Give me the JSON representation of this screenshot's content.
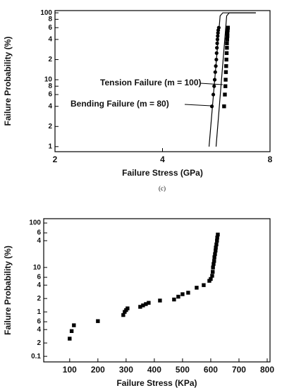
{
  "chart_data": [
    {
      "type": "scatter",
      "ylabel": "Failure Probability (%)",
      "xlabel": "Failure Stress (GPa)",
      "caption": "(c)",
      "xscale": "log",
      "yscale": "log",
      "xlim": [
        2,
        8
      ],
      "ylim": [
        0.84,
        108
      ],
      "xticks": [
        2,
        4,
        8
      ],
      "yticks": [
        1,
        2,
        4,
        6,
        8,
        10,
        {
          "value": 20,
          "label": "2"
        },
        {
          "value": 40,
          "label": "4"
        },
        {
          "value": 60,
          "label": "6"
        },
        {
          "value": 80,
          "label": "8"
        },
        100
      ],
      "annotations": [
        "Tension Failure (m = 100)",
        "Bending Failure (m = 80)"
      ],
      "series": [
        {
          "marker": "circle",
          "color": "#000000",
          "x": [
            5.5,
            5.55,
            5.58,
            5.6,
            5.62,
            5.64,
            5.66,
            5.67,
            5.68,
            5.69,
            5.7,
            5.71,
            5.72,
            5.73,
            5.75
          ],
          "values": [
            4,
            6,
            8,
            10,
            13,
            16,
            20,
            25,
            30,
            35,
            40,
            45,
            50,
            55,
            60
          ]
        },
        {
          "marker": "square",
          "color": "#000000",
          "x": [
            5.95,
            5.98,
            6.0,
            6.01,
            6.02,
            6.03,
            6.04,
            6.05,
            6.06,
            6.06,
            6.07,
            6.08,
            6.08,
            6.09,
            6.1
          ],
          "values": [
            4,
            6,
            8,
            10,
            13,
            16,
            20,
            25,
            30,
            35,
            40,
            45,
            50,
            55,
            60
          ]
        },
        {
          "marker": "none",
          "color": "#000000",
          "x": [
            5.4,
            5.8,
            5.9,
            7.3
          ],
          "values": [
            1,
            90,
            100,
            100
          ]
        },
        {
          "marker": "none",
          "color": "#000000",
          "x": [
            5.65,
            6.05,
            6.15,
            7.3
          ],
          "values": [
            1,
            90,
            100,
            100
          ]
        }
      ]
    },
    {
      "type": "scatter",
      "ylabel": "Failure Probability (%)",
      "xlabel": "Failure Stress (KPa)",
      "xscale": "linear",
      "yscale": "log",
      "xlim": [
        8,
        810
      ],
      "ylim": [
        0.075,
        125
      ],
      "xticks": [
        100,
        200,
        300,
        400,
        500,
        600,
        700,
        800
      ],
      "yticks": [
        0.1,
        {
          "value": 0.2,
          "label": "2"
        },
        {
          "value": 0.4,
          "label": "4"
        },
        {
          "value": 0.6,
          "label": "6"
        },
        1,
        {
          "value": 2,
          "label": "2"
        },
        {
          "value": 4,
          "label": "4"
        },
        {
          "value": 6,
          "label": "6"
        },
        10,
        {
          "value": 40,
          "label": "4"
        },
        {
          "value": 60,
          "label": "6"
        },
        100
      ],
      "series": [
        {
          "marker": "square",
          "color": "#000000",
          "x": [
            100,
            107,
            115,
            200,
            290,
            295,
            300,
            305,
            350,
            360,
            370,
            380,
            420,
            470,
            485,
            500,
            520,
            550,
            575,
            595,
            600,
            605,
            607,
            608,
            610,
            612,
            613,
            615,
            617,
            618,
            620,
            622,
            623,
            625
          ],
          "values": [
            0.25,
            0.37,
            0.5,
            0.62,
            0.85,
            1.0,
            1.1,
            1.2,
            1.3,
            1.4,
            1.5,
            1.6,
            1.8,
            1.9,
            2.2,
            2.5,
            2.7,
            3.5,
            4.0,
            5.0,
            5.5,
            6.5,
            8,
            10,
            12,
            14,
            17,
            20,
            24,
            28,
            33,
            40,
            47,
            55
          ]
        }
      ]
    }
  ]
}
